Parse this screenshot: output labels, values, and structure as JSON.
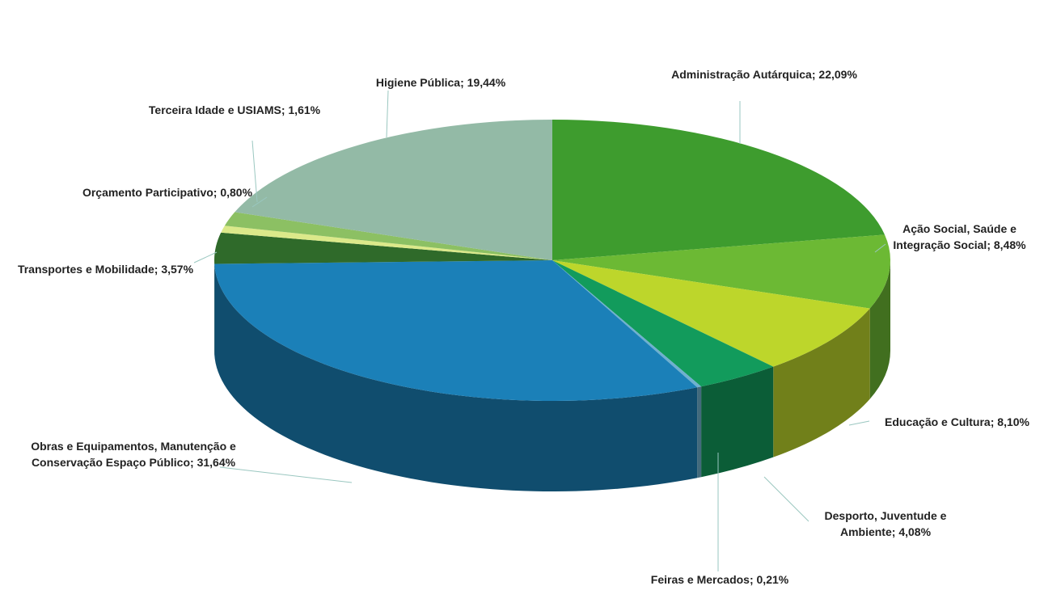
{
  "chart_data": {
    "type": "pie",
    "categories": [
      "Administração Autárquica",
      "Ação Social, Saúde e Integração Social",
      "Educação e Cultura",
      "Desporto, Juventude e Ambiente",
      "Feiras e Mercados",
      "Obras e Equipamentos, Manutenção e Conservação Espaço Público",
      "Transportes e Mobilidade",
      "Orçamento Participativo",
      "Terceira Idade e USIAMS",
      "Higiene Pública"
    ],
    "values": [
      22.09,
      8.48,
      8.1,
      4.08,
      0.21,
      31.64,
      3.57,
      0.8,
      1.61,
      19.44
    ],
    "value_labels": [
      "22,09%",
      "8,48%",
      "8,10%",
      "4,08%",
      "0,21%",
      "31,64%",
      "3,57%",
      "0,80%",
      "1,61%",
      "19,44%"
    ],
    "label_separator": ";",
    "colors": [
      "#3e9c2e",
      "#6cb934",
      "#bdd62b",
      "#129b5c",
      "#6fb0cf",
      "#1b80b8",
      "#2f6a2a",
      "#dbe98a",
      "#8cc063",
      "#93baa6"
    ]
  }
}
